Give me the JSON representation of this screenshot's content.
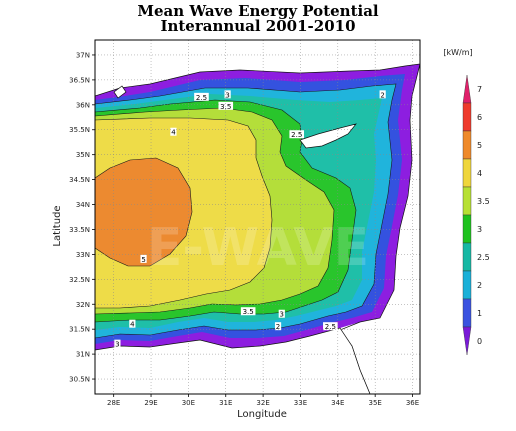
{
  "title": {
    "line1": "Mean Wave Energy Potential",
    "line2": "Interannual 2001-2010"
  },
  "map": {
    "xlabel": "Longitude",
    "ylabel": "Latitude",
    "lon_ticks": [
      "28E",
      "29E",
      "30E",
      "31E",
      "32E",
      "33E",
      "34E",
      "35E",
      "36E"
    ],
    "lat_ticks": [
      "37N",
      "36.5N",
      "36N",
      "35.5N",
      "35N",
      "34.5N",
      "34N",
      "33.5N",
      "33N",
      "32.5N",
      "32N",
      "31.5N",
      "31N",
      "30.5N"
    ],
    "lon_range": [
      27.5,
      36.2
    ],
    "lat_range": [
      30.2,
      37.3
    ],
    "contour_labels": [
      {
        "text": "2.5",
        "lon": 30.35,
        "lat": 36.15
      },
      {
        "text": "3",
        "lon": 31.05,
        "lat": 36.2
      },
      {
        "text": "3.5",
        "lon": 31.0,
        "lat": 35.97
      },
      {
        "text": "4",
        "lon": 29.6,
        "lat": 35.45
      },
      {
        "text": "2.5",
        "lon": 32.9,
        "lat": 35.4
      },
      {
        "text": "2",
        "lon": 35.2,
        "lat": 36.2
      },
      {
        "text": "5",
        "lon": 28.8,
        "lat": 32.9
      },
      {
        "text": "4",
        "lon": 28.5,
        "lat": 31.6
      },
      {
        "text": "3.5",
        "lon": 31.6,
        "lat": 31.85
      },
      {
        "text": "3",
        "lon": 32.5,
        "lat": 31.8
      },
      {
        "text": "2",
        "lon": 32.4,
        "lat": 31.55
      },
      {
        "text": "2.5",
        "lon": 33.8,
        "lat": 31.55
      },
      {
        "text": "3",
        "lon": 28.1,
        "lat": 31.2
      }
    ],
    "watermark": "E-WAVE"
  },
  "colorbar": {
    "unit": "[kW/m]",
    "labels": [
      "7",
      "6",
      "5",
      "4",
      "3.5",
      "3",
      "2.5",
      "2",
      "1",
      "0"
    ],
    "colors": [
      "#e0206a",
      "#ee3a2c",
      "#ef8a2a",
      "#efd63c",
      "#b7e034",
      "#1ec21e",
      "#16b8a4",
      "#1ab0d8",
      "#3a52e0",
      "#7a1ad8"
    ]
  },
  "colors": {
    "land": "#ffffff",
    "band_orange": "#ec8a30",
    "band_yellow": "#eedc48",
    "band_yellowgreen": "#b4de3a",
    "band_green": "#29c52c",
    "band_teal": "#1fbfa8",
    "band_cyan": "#20b4dc",
    "band_blue": "#3452df",
    "band_purple": "#8d1ee0"
  }
}
